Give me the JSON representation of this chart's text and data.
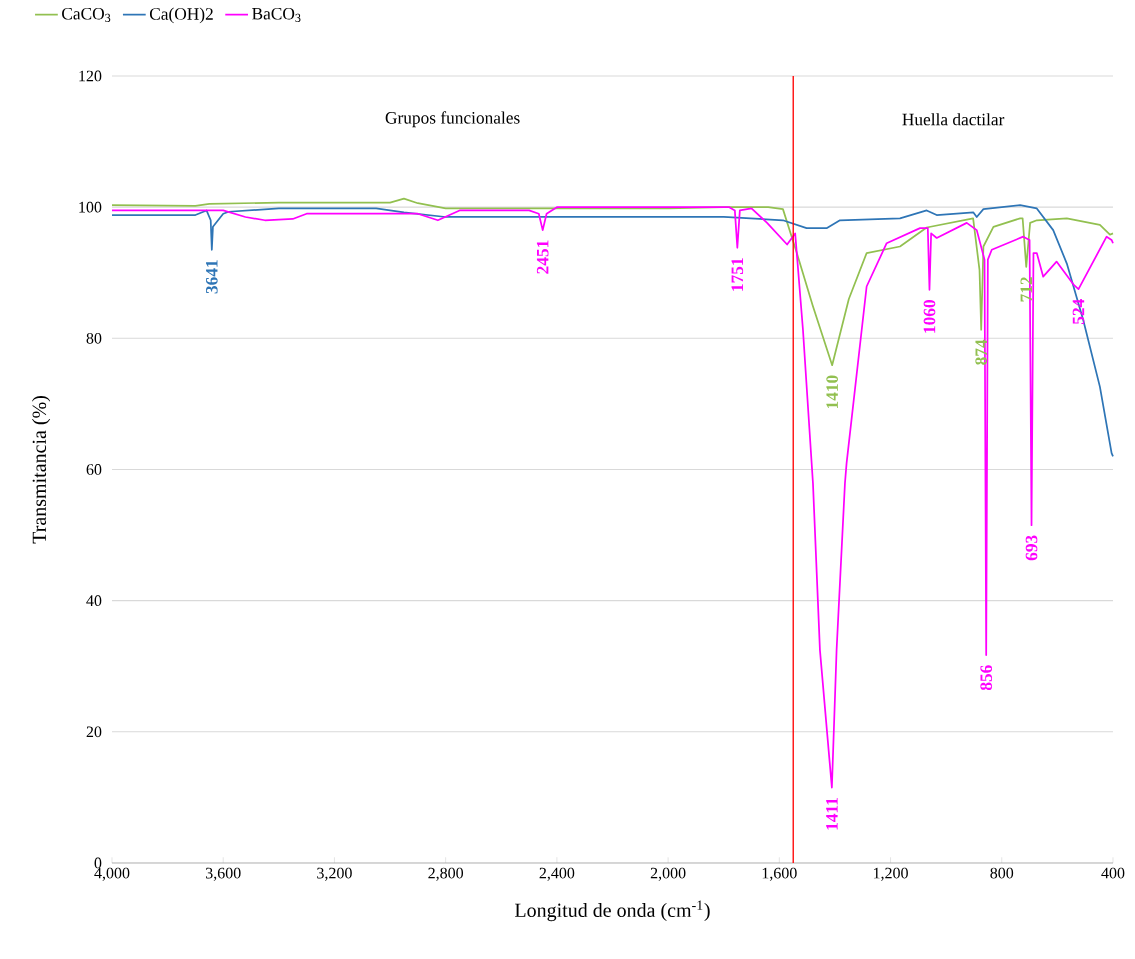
{
  "chart_data": {
    "type": "line",
    "xlabel": "Longitud de onda (cm$^{-1}$)",
    "ylabel": "Transmitancia (%)",
    "xlim": [
      4000,
      400
    ],
    "ylim": [
      0,
      120
    ],
    "xticks": [
      {
        "value": 4000,
        "label": "4,000"
      },
      {
        "value": 3600,
        "label": "3,600"
      },
      {
        "value": 3200,
        "label": "3,200"
      },
      {
        "value": 2800,
        "label": "2,800"
      },
      {
        "value": 2400,
        "label": "2,400"
      },
      {
        "value": 2000,
        "label": "2,000"
      },
      {
        "value": 1600,
        "label": "1,600"
      },
      {
        "value": 1200,
        "label": "1,200"
      },
      {
        "value": 800,
        "label": "800"
      },
      {
        "value": 400,
        "label": "400"
      }
    ],
    "yticks": [
      0,
      20,
      40,
      60,
      80,
      100,
      120
    ],
    "grid": "y",
    "legend": "top left",
    "line_style": "solid",
    "marker": "none",
    "series": [
      {
        "name": "CaCO$_{3}$",
        "color": "#92c050",
        "x": [
          4000,
          3700,
          3650,
          3400,
          3000,
          2950,
          2900,
          2800,
          2000,
          1800,
          1640,
          1587,
          1537,
          1480,
          1410,
          1350,
          1286,
          1166,
          1070,
          903,
          880,
          874,
          866,
          830,
          734,
          725,
          712,
          698,
          674,
          566,
          447,
          411,
          400
        ],
        "values": [
          100.3,
          100.2,
          100.5,
          100.7,
          100.7,
          101.3,
          100.6,
          99.8,
          99.8,
          100,
          100,
          99.7,
          93,
          85,
          75.9,
          86,
          93,
          94,
          96.9,
          98.3,
          90.4,
          81.3,
          94,
          97,
          98.3,
          98.3,
          90.9,
          97.6,
          98,
          98.3,
          97.3,
          95.8,
          96
        ]
      },
      {
        "name": "Ca(OH)2",
        "color": "#2e75b6",
        "x": [
          4000,
          3700,
          3660,
          3645,
          3641,
          3637,
          3600,
          3580,
          3400,
          3050,
          2950,
          2800,
          2000,
          1800,
          1587,
          1502,
          1430,
          1382,
          1166,
          1070,
          1034,
          902,
          890,
          866,
          734,
          674,
          615,
          566,
          507,
          447,
          405,
          400
        ],
        "values": [
          98.8,
          98.8,
          99.5,
          98,
          93.5,
          97,
          99,
          99.3,
          99.8,
          99.8,
          99.2,
          98.5,
          98.5,
          98.5,
          98,
          96.8,
          96.8,
          98,
          98.3,
          99.5,
          98.8,
          99.2,
          98.5,
          99.7,
          100.3,
          99.8,
          96.5,
          91.4,
          82.8,
          72.6,
          62.5,
          62
        ]
      },
      {
        "name": "BaCO$_{3}$",
        "color": "#ff00ff",
        "x": [
          4000,
          3600,
          3520,
          3450,
          3350,
          3300,
          2900,
          2828,
          2750,
          2500,
          2465,
          2451,
          2437,
          2400,
          1780,
          1760,
          1751,
          1742,
          1700,
          1644,
          1572,
          1543,
          1515,
          1479,
          1454,
          1411,
          1394,
          1364,
          1358,
          1286,
          1214,
          1094,
          1066,
          1060,
          1054,
          1034,
          926,
          890,
          862,
          856,
          850,
          836,
          723,
          700,
          693,
          686,
          674,
          651,
          603,
          540,
          524,
          423,
          405,
          400
        ],
        "values": [
          99.5,
          99.5,
          98.5,
          98,
          98.2,
          99,
          99,
          98,
          99.5,
          99.5,
          99,
          96.5,
          99,
          100,
          100,
          99.5,
          93.8,
          99.5,
          99.8,
          97.6,
          94.3,
          96,
          81.3,
          57.9,
          32.5,
          11.5,
          32.5,
          57.9,
          61,
          87.9,
          94.5,
          96.8,
          96.8,
          87.4,
          96,
          95.3,
          97.6,
          96.5,
          92,
          31.7,
          92,
          93.5,
          95.5,
          95,
          51.5,
          93,
          93,
          89.4,
          91.7,
          88.1,
          87.5,
          95.5,
          95,
          94.5
        ]
      }
    ],
    "ref_lines": [
      {
        "axis": "x",
        "value": 1550,
        "color": "#ff0000"
      }
    ],
    "annotations": [
      "Grupos funcionales",
      "Huella dactilar",
      {
        "text": "3641",
        "x": 3641,
        "y": 93.5
      },
      {
        "text": "2451",
        "x": 2451,
        "y": 96.5
      },
      {
        "text": "1751",
        "x": 1751,
        "y": 93.8
      },
      {
        "text": "1410",
        "x": 1410,
        "y": 75.9
      },
      {
        "text": "1411",
        "x": 1411,
        "y": 11.5
      },
      {
        "text": "1060",
        "x": 1060,
        "y": 87.4
      },
      {
        "text": "874",
        "x": 874,
        "y": 81.3
      },
      {
        "text": "856",
        "x": 856,
        "y": 31.7
      },
      {
        "text": "712",
        "x": 712,
        "y": 90.9
      },
      {
        "text": "693",
        "x": 693,
        "y": 51.5
      },
      {
        "text": "524",
        "x": 524,
        "y": 87.5
      }
    ]
  }
}
